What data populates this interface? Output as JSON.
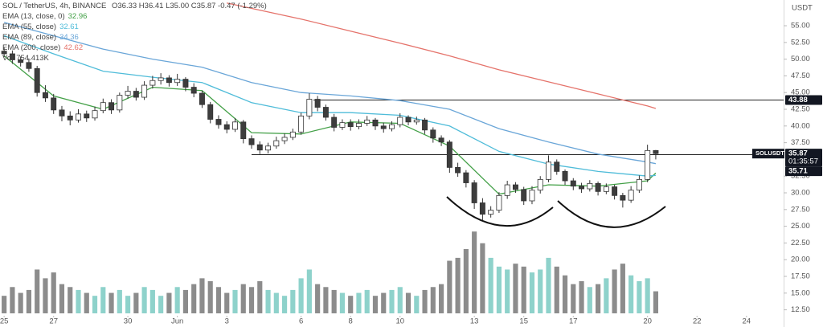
{
  "chart_data": {
    "type": "candlestick",
    "symbol": "SOL / TetherUS, 4h, BINANCE",
    "ohlc_text": "O36.33 H36.41 L35.00 C35.87 -0.47 (-1.29%)",
    "currency": "USDT",
    "up_color": "#ffffff",
    "down_color": "#3d3d3d",
    "x": [
      0,
      8,
      16,
      24,
      32,
      40,
      48,
      56,
      64,
      72,
      80,
      88,
      96,
      104,
      112,
      120,
      128,
      136,
      144,
      152,
      160,
      168,
      176,
      184,
      192,
      200,
      208,
      216,
      224,
      232,
      240,
      248,
      256,
      264,
      272,
      280,
      288,
      296,
      304,
      312,
      320,
      328,
      336,
      344,
      352,
      360,
      368,
      376,
      384,
      392,
      400,
      408,
      416,
      424,
      432,
      440,
      448,
      456,
      464,
      472,
      480,
      488,
      496,
      504,
      512,
      520,
      528,
      536,
      544,
      552,
      560,
      568,
      576,
      584,
      592,
      600,
      608,
      616,
      624,
      632
    ],
    "open": [
      51.2,
      50.8,
      49.9,
      49.5,
      48.6,
      45.0,
      44.2,
      42.4,
      41.5,
      40.9,
      41.8,
      41.2,
      42.3,
      43.5,
      42.4,
      44.6,
      45.2,
      44.3,
      46.1,
      46.8,
      47.2,
      46.5,
      47.0,
      45.8,
      44.9,
      43.2,
      41.0,
      40.2,
      39.5,
      40.6,
      38.1,
      37.2,
      36.4,
      37.0,
      37.8,
      38.3,
      39.1,
      41.5,
      44.0,
      42.8,
      41.3,
      39.8,
      40.5,
      39.9,
      40.4,
      40.9,
      40.0,
      39.6,
      40.2,
      41.3,
      40.6,
      40.9,
      39.4,
      38.2,
      37.6,
      33.8,
      33.0,
      31.5,
      28.5,
      26.8,
      27.4,
      29.6,
      31.2,
      30.5,
      28.8,
      30.4,
      32.0,
      34.6,
      33.2,
      31.8,
      31.0,
      30.6,
      31.4,
      30.2,
      30.9,
      29.6,
      28.9,
      30.4,
      32.0,
      36.33
    ],
    "high": [
      51.8,
      51.3,
      50.4,
      50.1,
      49.0,
      46.1,
      44.8,
      43.0,
      42.2,
      42.5,
      42.3,
      42.9,
      44.1,
      44.0,
      45.0,
      46.0,
      45.7,
      46.7,
      47.5,
      47.9,
      47.6,
      47.8,
      47.3,
      46.4,
      45.3,
      43.6,
      41.6,
      40.7,
      41.2,
      40.9,
      38.6,
      37.7,
      37.5,
      38.4,
      38.9,
      39.6,
      42.0,
      44.9,
      44.5,
      43.2,
      41.8,
      41.0,
      41.0,
      41.0,
      41.5,
      41.2,
      40.5,
      40.7,
      41.9,
      41.6,
      41.4,
      41.2,
      39.8,
      38.6,
      37.9,
      34.5,
      33.4,
      31.9,
      29.2,
      28.0,
      30.1,
      31.8,
      31.6,
      30.9,
      31.0,
      32.5,
      35.6,
      35.0,
      33.5,
      32.2,
      31.5,
      31.9,
      31.7,
      31.4,
      31.2,
      30.0,
      31.0,
      32.6,
      37.2,
      36.41
    ],
    "low": [
      50.3,
      49.3,
      48.9,
      48.1,
      44.4,
      43.6,
      41.8,
      40.7,
      40.1,
      40.5,
      40.6,
      40.8,
      41.9,
      41.8,
      42.0,
      44.1,
      43.8,
      43.9,
      45.6,
      46.2,
      45.9,
      46.0,
      45.2,
      44.3,
      42.7,
      40.4,
      39.6,
      38.9,
      39.1,
      37.4,
      36.6,
      35.8,
      35.9,
      36.6,
      37.3,
      37.9,
      38.7,
      41.0,
      42.2,
      40.8,
      39.2,
      39.4,
      39.3,
      39.5,
      40.0,
      39.4,
      39.0,
      39.2,
      39.8,
      40.1,
      40.2,
      38.8,
      37.5,
      37.0,
      33.0,
      32.4,
      30.8,
      27.6,
      25.9,
      26.3,
      27.0,
      29.1,
      30.0,
      28.2,
      28.3,
      29.9,
      31.6,
      32.7,
      31.2,
      30.4,
      30.0,
      30.2,
      29.6,
      29.8,
      29.0,
      27.8,
      28.5,
      30.0,
      31.6,
      35.0
    ],
    "close": [
      50.8,
      49.9,
      49.5,
      48.6,
      45.0,
      44.2,
      42.4,
      41.5,
      40.9,
      41.8,
      41.2,
      42.3,
      43.5,
      42.4,
      44.6,
      45.2,
      44.3,
      46.1,
      46.8,
      47.2,
      46.5,
      47.0,
      45.8,
      44.9,
      43.2,
      41.0,
      40.2,
      39.5,
      40.6,
      38.1,
      37.2,
      36.4,
      37.0,
      37.8,
      38.3,
      39.1,
      41.5,
      44.0,
      42.8,
      41.3,
      39.8,
      40.5,
      39.9,
      40.4,
      40.9,
      40.0,
      39.6,
      40.2,
      41.3,
      40.6,
      40.9,
      39.4,
      38.2,
      37.6,
      33.8,
      33.0,
      31.5,
      28.5,
      26.8,
      27.4,
      29.6,
      31.2,
      30.5,
      28.8,
      30.4,
      32.0,
      34.6,
      33.2,
      31.8,
      31.0,
      30.6,
      31.4,
      30.2,
      30.9,
      29.6,
      28.9,
      30.4,
      32.0,
      36.33,
      35.87
    ],
    "volume": {
      "name": "Vol",
      "value_label": "754.413K",
      "up_color": "#8ed2cb",
      "down_color": "#8c8c8c",
      "values": [
        600,
        900,
        700,
        800,
        1500,
        1200,
        1400,
        1000,
        900,
        800,
        700,
        600,
        900,
        700,
        800,
        600,
        700,
        900,
        800,
        600,
        700,
        900,
        800,
        1000,
        1200,
        1100,
        900,
        700,
        800,
        1000,
        900,
        1100,
        800,
        700,
        600,
        800,
        1200,
        1500,
        1000,
        900,
        800,
        700,
        600,
        700,
        800,
        600,
        700,
        800,
        900,
        700,
        600,
        800,
        900,
        1000,
        1800,
        1900,
        2200,
        2800,
        2400,
        1900,
        1600,
        1500,
        1700,
        1600,
        1400,
        1500,
        1900,
        1600,
        1300,
        1000,
        1100,
        900,
        1000,
        1200,
        1500,
        1700,
        1300,
        1100,
        1200,
        754.413
      ]
    },
    "vlim": [
      0,
      3300
    ],
    "lines": [
      {
        "name": "EMA (13, close, 0)",
        "color": "#43a047",
        "value_label": "32.96",
        "x": [
          0,
          48,
          96,
          144,
          192,
          240,
          288,
          336,
          384,
          432,
          480,
          528,
          576,
          624,
          632
        ],
        "values": [
          50.5,
          44.5,
          42.5,
          45.8,
          45.3,
          39.0,
          38.8,
          40.6,
          40.4,
          37.0,
          29.8,
          31.2,
          31.0,
          31.8,
          32.96
        ]
      },
      {
        "name": "EMA (55, close)",
        "color": "#4fbcd9",
        "value_label": "32.61",
        "x": [
          0,
          48,
          96,
          144,
          192,
          240,
          288,
          336,
          384,
          432,
          480,
          528,
          576,
          624,
          632
        ],
        "values": [
          53.5,
          50.8,
          48.2,
          47.3,
          46.5,
          43.5,
          42.0,
          42.0,
          41.6,
          40.0,
          36.2,
          34.3,
          33.2,
          32.5,
          32.61
        ]
      },
      {
        "name": "EMA (89, close)",
        "color": "#6aa6d8",
        "value_label": "34.36",
        "x": [
          0,
          48,
          96,
          144,
          192,
          240,
          288,
          336,
          384,
          432,
          480,
          528,
          576,
          624,
          632
        ],
        "values": [
          55.5,
          53.5,
          51.5,
          50.0,
          48.8,
          46.5,
          45.0,
          44.5,
          43.8,
          42.5,
          39.6,
          37.6,
          35.8,
          34.6,
          34.36
        ]
      },
      {
        "name": "EMA (200, close)",
        "color": "#e5736b",
        "value_label": "42.62",
        "x": [
          216,
          288,
          336,
          384,
          432,
          480,
          528,
          576,
          624,
          632
        ],
        "values": [
          58.4,
          56.0,
          54.2,
          52.4,
          50.5,
          48.4,
          46.6,
          44.8,
          43.0,
          42.62
        ]
      }
    ],
    "xlim": [
      -4,
      756
    ],
    "xticks": [
      {
        "value": 0,
        "label": "25"
      },
      {
        "value": 48,
        "label": "27"
      },
      {
        "value": 120,
        "label": "30"
      },
      {
        "value": 168,
        "label": "Jun"
      },
      {
        "value": 216,
        "label": "3"
      },
      {
        "value": 288,
        "label": "6"
      },
      {
        "value": 336,
        "label": "8"
      },
      {
        "value": 384,
        "label": "10"
      },
      {
        "value": 456,
        "label": "13"
      },
      {
        "value": 504,
        "label": "15"
      },
      {
        "value": 552,
        "label": "17"
      },
      {
        "value": 624,
        "label": "20"
      },
      {
        "value": 672,
        "label": "22"
      },
      {
        "value": 720,
        "label": "24"
      }
    ],
    "ylim": [
      11.37,
      58.85
    ],
    "yticks": [
      {
        "value": 55,
        "label": "55.00"
      },
      {
        "value": 52.5,
        "label": "52.50"
      },
      {
        "value": 50,
        "label": "50.00"
      },
      {
        "value": 47.5,
        "label": "47.50"
      },
      {
        "value": 45,
        "label": "45.00"
      },
      {
        "value": 42.5,
        "label": "42.50"
      },
      {
        "value": 40,
        "label": "40.00"
      },
      {
        "value": 37.5,
        "label": "37.50"
      },
      {
        "value": 32.5,
        "label": "32.50"
      },
      {
        "value": 30,
        "label": "30.00"
      },
      {
        "value": 27.5,
        "label": "27.50"
      },
      {
        "value": 25,
        "label": "25.00"
      },
      {
        "value": 22.5,
        "label": "22.50"
      },
      {
        "value": 20,
        "label": "20.00"
      },
      {
        "value": 17.5,
        "label": "17.50"
      },
      {
        "value": 15,
        "label": "15.00"
      },
      {
        "value": 12.5,
        "label": "12.50"
      }
    ],
    "hlines": [
      {
        "value": 43.88,
        "label": "43.88",
        "x_start": 300
      },
      {
        "value": 35.71,
        "label": "35.71",
        "x_start": 240
      }
    ],
    "last_price": {
      "value": 35.87,
      "label": "35.87",
      "symbol": "SOLUSDT",
      "countdown": "01:35:57"
    }
  }
}
